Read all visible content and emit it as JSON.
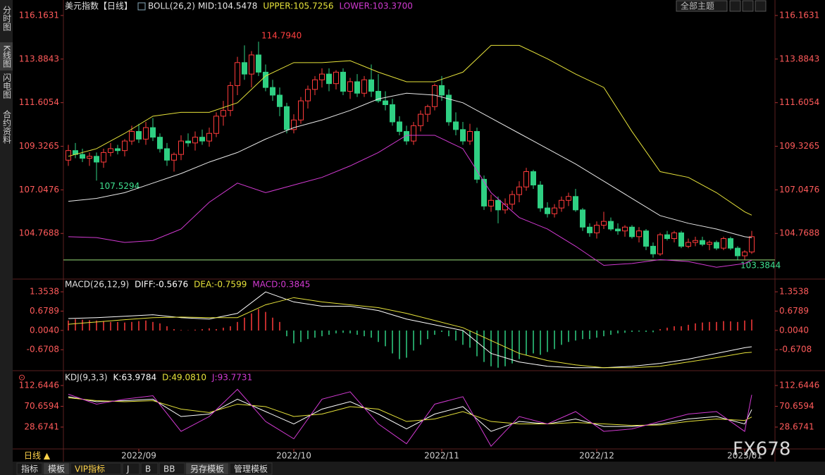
{
  "ui": {
    "sidebar": [
      "分时图",
      "K线图",
      "闪电图",
      "合约资料"
    ],
    "toolbar": "全部主题",
    "period": "日线 ▲",
    "tabs": [
      "指标",
      "模板",
      "VIP指标",
      "J",
      "B",
      "BB",
      "另存模板",
      "管理模板"
    ],
    "watermark": "FX678"
  },
  "chart_data": [
    {
      "type": "candlestick",
      "title": "美元指数【日线】",
      "indicator": "BOLL(26,2)",
      "up_color": "#ff3b3b",
      "down_color": "#2fd083",
      "ylim": [
        102.42,
        116.53
      ],
      "yticks": [
        116.1631,
        113.8843,
        111.6054,
        109.3265,
        107.0476,
        104.7688
      ],
      "xticks": [
        {
          "value": 10,
          "label": "2022/09"
        },
        {
          "value": 32,
          "label": "2022/10"
        },
        {
          "value": 53,
          "label": "2022/11"
        },
        {
          "value": 75,
          "label": "2022/12"
        },
        {
          "value": 96,
          "label": "2023/01"
        }
      ],
      "annotations": [
        {
          "value": 114.794,
          "label": "114.7940",
          "color": "#ff4040"
        },
        {
          "value": 107.53,
          "label": "107.5294",
          "color": "#3fe08f"
        },
        {
          "value": 103.3844,
          "label": "103.3844",
          "color": "#3fe08f"
        }
      ],
      "candles": [
        [
          108.6,
          109.4,
          108.3,
          109.1
        ],
        [
          109.1,
          109.5,
          108.7,
          108.9
        ],
        [
          108.9,
          109.2,
          108.5,
          108.7
        ],
        [
          108.7,
          109.0,
          108.3,
          108.8
        ],
        [
          108.8,
          109.0,
          107.53,
          108.5
        ],
        [
          108.5,
          109.2,
          108.2,
          109.0
        ],
        [
          109.0,
          109.5,
          108.8,
          109.2
        ],
        [
          109.2,
          109.4,
          108.9,
          109.1
        ],
        [
          109.1,
          109.7,
          108.8,
          109.6
        ],
        [
          109.6,
          110.4,
          109.4,
          110.1
        ],
        [
          110.1,
          110.5,
          109.5,
          109.7
        ],
        [
          109.7,
          110.6,
          109.4,
          110.3
        ],
        [
          110.3,
          110.8,
          109.6,
          109.8
        ],
        [
          109.8,
          110.0,
          109.0,
          109.2
        ],
        [
          109.2,
          109.5,
          108.3,
          108.6
        ],
        [
          108.6,
          109.0,
          108.0,
          108.9
        ],
        [
          108.9,
          109.9,
          108.6,
          109.6
        ],
        [
          109.6,
          110.0,
          109.3,
          109.5
        ],
        [
          109.5,
          110.1,
          109.1,
          109.8
        ],
        [
          109.8,
          110.2,
          109.4,
          109.6
        ],
        [
          109.6,
          110.3,
          109.3,
          110.0
        ],
        [
          110.0,
          111.1,
          109.8,
          110.9
        ],
        [
          110.9,
          111.7,
          110.4,
          111.2
        ],
        [
          111.2,
          112.7,
          110.9,
          112.5
        ],
        [
          112.5,
          114.0,
          112.0,
          113.7
        ],
        [
          113.7,
          114.6,
          112.8,
          113.1
        ],
        [
          113.1,
          114.3,
          112.4,
          114.1
        ],
        [
          114.1,
          114.794,
          113.0,
          113.2
        ],
        [
          113.2,
          113.6,
          112.2,
          112.4
        ],
        [
          112.4,
          112.8,
          111.7,
          112.0
        ],
        [
          112.0,
          112.4,
          110.9,
          111.4
        ],
        [
          111.4,
          111.6,
          110.0,
          110.2
        ],
        [
          110.2,
          111.0,
          110.0,
          110.7
        ],
        [
          110.7,
          111.9,
          110.5,
          111.7
        ],
        [
          111.7,
          112.5,
          111.3,
          112.3
        ],
        [
          112.3,
          113.0,
          112.0,
          112.8
        ],
        [
          112.8,
          113.4,
          112.4,
          113.1
        ],
        [
          113.1,
          113.4,
          112.2,
          112.6
        ],
        [
          112.6,
          113.3,
          112.3,
          113.2
        ],
        [
          113.2,
          113.4,
          112.0,
          112.2
        ],
        [
          112.2,
          112.9,
          111.8,
          112.7
        ],
        [
          112.7,
          113.1,
          111.9,
          112.1
        ],
        [
          112.1,
          113.0,
          111.9,
          112.8
        ],
        [
          112.8,
          113.6,
          111.9,
          112.2
        ],
        [
          112.2,
          113.1,
          111.6,
          111.7
        ],
        [
          111.7,
          112.2,
          111.2,
          111.5
        ],
        [
          111.5,
          111.8,
          110.4,
          110.6
        ],
        [
          110.6,
          110.9,
          109.9,
          110.1
        ],
        [
          110.1,
          110.4,
          109.4,
          109.6
        ],
        [
          109.6,
          110.6,
          109.4,
          110.4
        ],
        [
          110.4,
          111.2,
          110.1,
          111.0
        ],
        [
          111.0,
          111.5,
          110.6,
          111.4
        ],
        [
          111.4,
          112.6,
          111.2,
          112.5
        ],
        [
          112.5,
          113.0,
          111.7,
          112.0
        ],
        [
          112.0,
          112.3,
          110.4,
          110.6
        ],
        [
          110.6,
          111.1,
          109.9,
          110.2
        ],
        [
          110.2,
          110.6,
          109.4,
          109.6
        ],
        [
          109.6,
          110.5,
          109.4,
          110.1
        ],
        [
          110.1,
          110.3,
          107.4,
          107.6
        ],
        [
          107.6,
          107.8,
          106.0,
          106.2
        ],
        [
          106.2,
          106.8,
          105.9,
          106.5
        ],
        [
          106.5,
          106.7,
          105.3,
          106.0
        ],
        [
          106.0,
          106.6,
          105.8,
          106.3
        ],
        [
          106.3,
          107.0,
          106.0,
          106.8
        ],
        [
          106.8,
          107.5,
          106.4,
          107.2
        ],
        [
          107.2,
          108.2,
          107.0,
          108.0
        ],
        [
          108.0,
          108.1,
          107.1,
          107.3
        ],
        [
          107.3,
          107.5,
          105.9,
          106.1
        ],
        [
          106.1,
          106.4,
          105.6,
          105.8
        ],
        [
          105.8,
          106.3,
          105.6,
          106.1
        ],
        [
          106.1,
          106.7,
          105.9,
          106.5
        ],
        [
          106.5,
          106.9,
          106.2,
          106.7
        ],
        [
          106.7,
          107.1,
          105.9,
          106.0
        ],
        [
          106.0,
          106.1,
          104.9,
          105.1
        ],
        [
          105.1,
          105.3,
          104.6,
          104.8
        ],
        [
          104.8,
          105.4,
          104.5,
          105.2
        ],
        [
          105.2,
          105.9,
          105.0,
          105.4
        ],
        [
          105.4,
          105.6,
          104.9,
          105.0
        ],
        [
          105.0,
          105.3,
          104.7,
          104.9
        ],
        [
          104.9,
          105.2,
          104.6,
          105.1
        ],
        [
          105.1,
          105.2,
          104.5,
          104.6
        ],
        [
          104.6,
          105.1,
          104.3,
          104.9
        ],
        [
          104.9,
          105.0,
          103.9,
          104.1
        ],
        [
          104.1,
          104.3,
          103.5,
          103.7
        ],
        [
          103.7,
          104.8,
          103.6,
          104.7
        ],
        [
          104.7,
          104.9,
          104.4,
          104.5
        ],
        [
          104.5,
          104.9,
          104.3,
          104.8
        ],
        [
          104.8,
          104.9,
          104.0,
          104.1
        ],
        [
          104.1,
          104.5,
          104.0,
          104.3
        ],
        [
          104.3,
          104.6,
          104.1,
          104.4
        ],
        [
          104.4,
          104.6,
          104.1,
          104.2
        ],
        [
          104.2,
          104.4,
          103.9,
          104.3
        ],
        [
          104.3,
          104.4,
          103.9,
          104.0
        ],
        [
          104.0,
          104.6,
          103.9,
          104.5
        ],
        [
          104.5,
          104.6,
          103.9,
          104.0
        ],
        [
          104.0,
          104.1,
          103.3844,
          103.6
        ],
        [
          103.6,
          103.9,
          103.4,
          103.8
        ],
        [
          103.8,
          104.9,
          103.7,
          104.6
        ]
      ],
      "x": [
        0,
        4,
        8,
        12,
        16,
        20,
        24,
        28,
        32,
        36,
        40,
        44,
        48,
        52,
        56,
        60,
        64,
        68,
        72,
        76,
        80,
        84,
        88,
        92,
        96,
        97
      ],
      "series": [
        {
          "name": "MID:104.5478",
          "color": "#e8e8e8",
          "values": [
            106.45,
            106.6,
            106.9,
            107.4,
            107.9,
            108.5,
            109.0,
            109.7,
            110.3,
            110.7,
            111.2,
            111.8,
            112.1,
            112.0,
            111.6,
            110.8,
            110.0,
            109.2,
            108.4,
            107.5,
            106.6,
            105.7,
            105.3,
            105.0,
            104.6,
            104.5478
          ]
        },
        {
          "name": "UPPER:105.7256",
          "color": "#e6e23a",
          "values": [
            108.8,
            109.2,
            110.0,
            110.9,
            111.1,
            111.1,
            111.6,
            113.0,
            113.7,
            113.7,
            113.8,
            113.2,
            112.7,
            112.7,
            113.2,
            114.6,
            114.6,
            113.9,
            113.1,
            112.4,
            110.1,
            108.0,
            107.7,
            106.9,
            105.9,
            105.7256
          ]
        },
        {
          "name": "LOWER:103.3700",
          "color": "#d23ad2",
          "values": [
            104.6,
            104.55,
            104.3,
            104.4,
            105.0,
            106.4,
            107.4,
            106.9,
            107.3,
            107.7,
            108.3,
            109.0,
            109.9,
            109.9,
            109.2,
            106.9,
            105.6,
            105.0,
            104.1,
            103.1,
            103.2,
            103.4,
            103.3,
            103.0,
            103.2,
            103.37
          ]
        }
      ]
    },
    {
      "type": "macd",
      "title": "MACD(26,12,9)",
      "ylim": [
        -1.38,
        1.774
      ],
      "yticks": [
        1.3538,
        0.6789,
        {
          "value": 0.004,
          "label": "0.0040"
        },
        -0.6708
      ],
      "x": [
        0,
        4,
        8,
        12,
        16,
        20,
        24,
        28,
        32,
        36,
        40,
        44,
        48,
        52,
        56,
        60,
        64,
        68,
        72,
        76,
        80,
        84,
        88,
        92,
        96,
        97
      ],
      "series": [
        {
          "name": "DIFF:-0.5676",
          "color": "#ffffff",
          "values": [
            0.42,
            0.45,
            0.5,
            0.55,
            0.45,
            0.4,
            0.6,
            1.35,
            1.0,
            0.85,
            0.85,
            0.7,
            0.4,
            0.2,
            0.0,
            -0.8,
            -1.1,
            -1.25,
            -1.3,
            -1.3,
            -1.25,
            -1.15,
            -1.0,
            -0.8,
            -0.6,
            -0.5676
          ]
        },
        {
          "name": "DEA:-0.7599",
          "color": "#e6e23a",
          "values": [
            0.22,
            0.3,
            0.38,
            0.45,
            0.47,
            0.45,
            0.45,
            0.9,
            1.15,
            1.0,
            0.9,
            0.8,
            0.6,
            0.35,
            0.1,
            -0.35,
            -0.8,
            -1.05,
            -1.2,
            -1.3,
            -1.3,
            -1.25,
            -1.1,
            -0.95,
            -0.78,
            -0.7599
          ]
        }
      ],
      "histogram": {
        "name": "MACD:0.3845",
        "color": "#d23ad2",
        "up_color": "#ff3b3b",
        "down_color": "#2fd083",
        "values": [
          0.35,
          0.4,
          0.38,
          0.36,
          0.35,
          0.33,
          0.3,
          0.3,
          0.28,
          0.3,
          0.33,
          0.35,
          0.3,
          0.25,
          0.15,
          0.05,
          0.02,
          0.01,
          0.03,
          0.05,
          0.08,
          0.05,
          0.1,
          0.15,
          0.3,
          0.45,
          0.6,
          0.75,
          0.65,
          0.45,
          0.3,
          -0.2,
          -0.45,
          -0.4,
          -0.3,
          -0.25,
          -0.2,
          -0.15,
          -0.1,
          -0.08,
          -0.1,
          -0.15,
          -0.2,
          -0.25,
          -0.4,
          -0.55,
          -0.8,
          -1.0,
          -0.95,
          -0.7,
          -0.5,
          -0.3,
          -0.15,
          -0.05,
          -0.2,
          -0.35,
          -0.5,
          -0.6,
          -0.9,
          -1.1,
          -1.25,
          -1.3,
          -1.25,
          -1.15,
          -1.0,
          -0.85,
          -0.8,
          -0.85,
          -0.75,
          -0.65,
          -0.5,
          -0.4,
          -0.35,
          -0.3,
          -0.3,
          -0.25,
          -0.2,
          -0.15,
          -0.1,
          -0.08,
          -0.05,
          -0.04,
          -0.05,
          -0.06,
          0.05,
          0.1,
          0.15,
          0.15,
          0.2,
          0.25,
          0.28,
          0.3,
          0.3,
          0.33,
          0.32,
          0.3,
          0.35,
          0.3845
        ]
      }
    },
    {
      "type": "line",
      "title": "KDJ(9,3,3)",
      "ylim": [
        -12.6,
        139.7
      ],
      "yticks": [
        112.6446,
        70.6594,
        28.6741
      ],
      "x": [
        0,
        4,
        8,
        12,
        16,
        20,
        24,
        28,
        32,
        36,
        40,
        44,
        48,
        52,
        56,
        60,
        64,
        68,
        72,
        76,
        80,
        84,
        88,
        92,
        96,
        97
      ],
      "series": [
        {
          "name": "K:63.9784",
          "color": "#ffffff",
          "values": [
            90,
            80,
            82,
            85,
            50,
            55,
            85,
            60,
            35,
            65,
            80,
            55,
            25,
            55,
            70,
            20,
            40,
            35,
            45,
            30,
            30,
            35,
            45,
            50,
            35,
            63.9784
          ]
        },
        {
          "name": "D:49.0810",
          "color": "#e6e23a",
          "values": [
            88,
            82,
            80,
            82,
            65,
            58,
            75,
            70,
            50,
            55,
            70,
            65,
            40,
            45,
            60,
            40,
            35,
            35,
            38,
            35,
            32,
            33,
            40,
            45,
            42,
            49.081
          ]
        },
        {
          "name": "J:93.7731",
          "color": "#d23ad2",
          "values": [
            95,
            75,
            85,
            92,
            20,
            50,
            105,
            40,
            5,
            85,
            100,
            35,
            -5,
            75,
            90,
            -10,
            50,
            35,
            60,
            20,
            25,
            40,
            55,
            60,
            20,
            93.7731
          ]
        }
      ]
    }
  ]
}
